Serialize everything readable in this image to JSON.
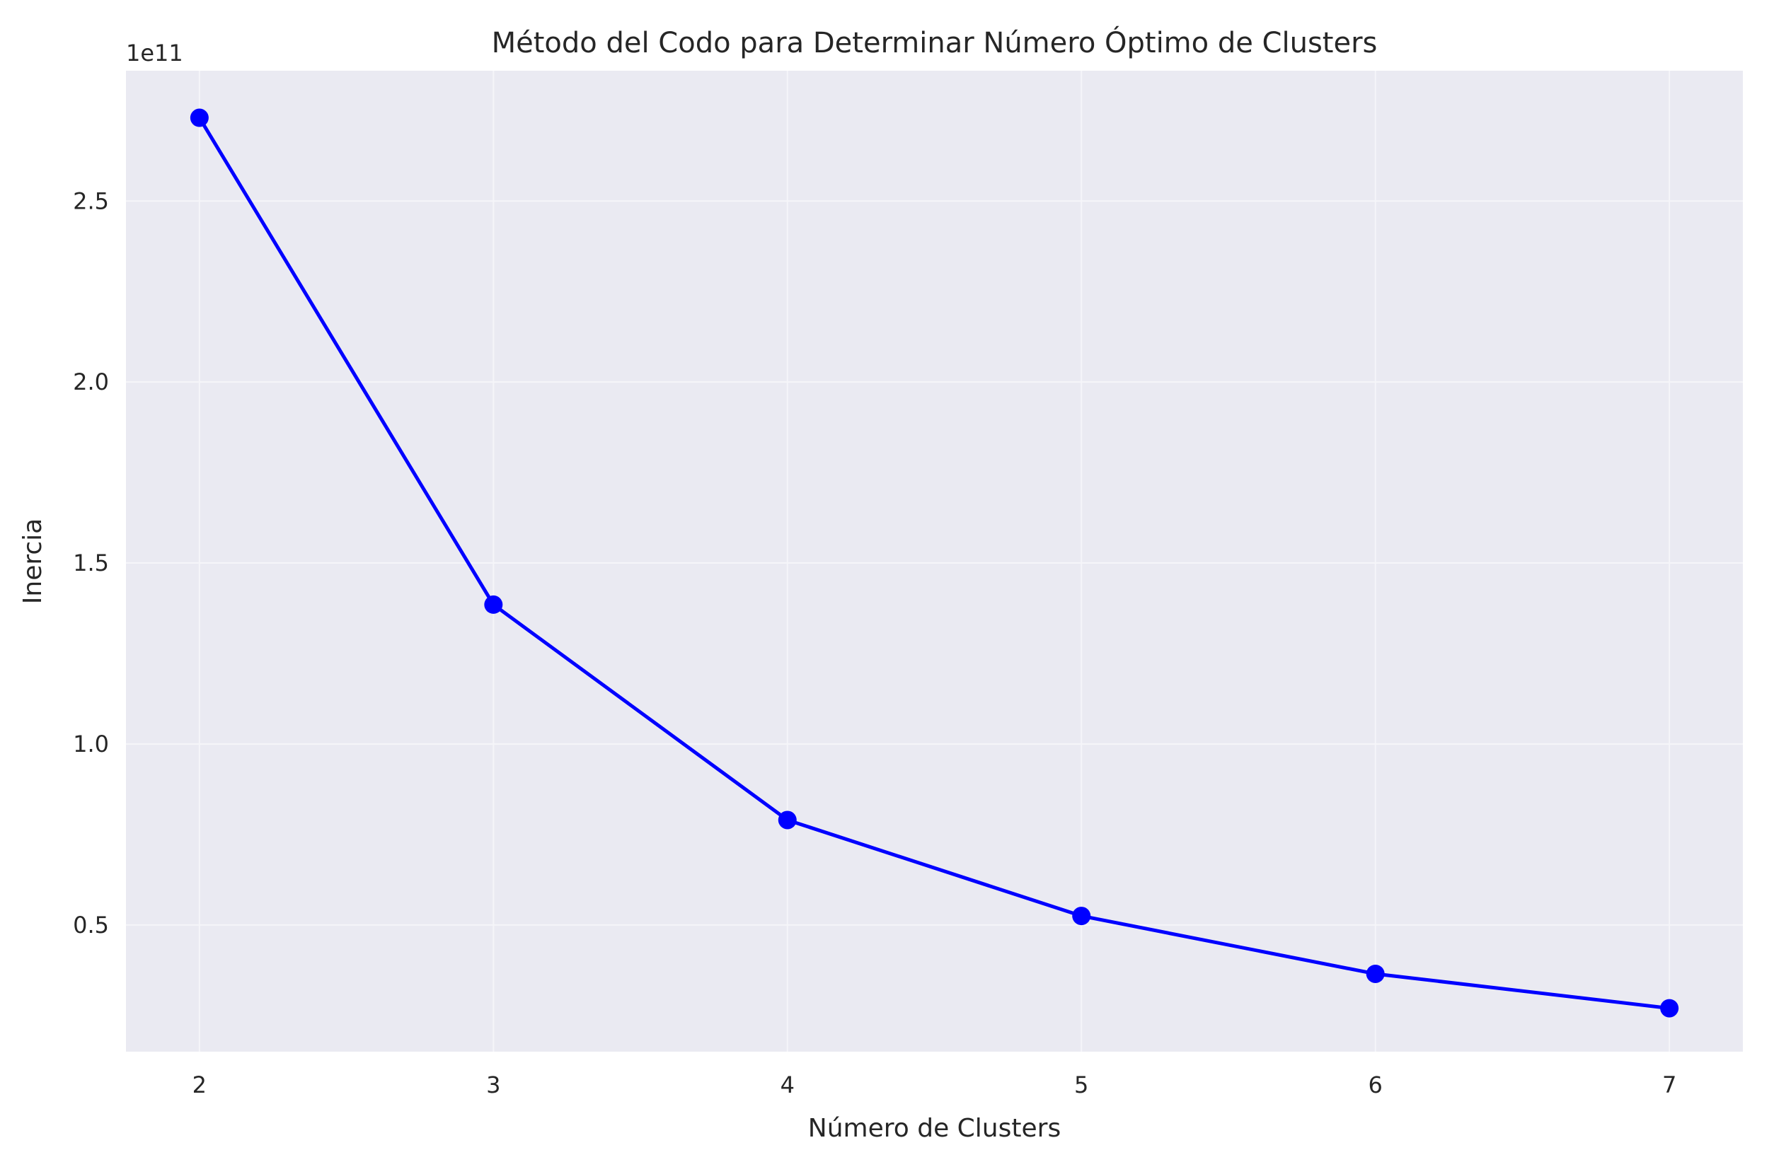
{
  "chart_data": {
    "type": "line",
    "title": "Método del Codo para Determinar Número Óptimo de Clusters",
    "xlabel": "Número de Clusters",
    "ylabel": "Inercia",
    "y_offset_label": "1e11",
    "x": [
      2,
      3,
      4,
      5,
      6,
      7
    ],
    "series": [
      {
        "values": [
          273000000000.0,
          138500000000.0,
          79000000000.0,
          52500000000.0,
          36500000000.0,
          27000000000.0
        ],
        "color": "#0000ff",
        "marker": "circle"
      }
    ],
    "xlim": [
      1.75,
      7.25
    ],
    "ylim": [
      15000000000.0,
      286000000000.0
    ],
    "x_ticks": [
      {
        "value": 2,
        "label": "2"
      },
      {
        "value": 3,
        "label": "3"
      },
      {
        "value": 4,
        "label": "4"
      },
      {
        "value": 5,
        "label": "5"
      },
      {
        "value": 6,
        "label": "6"
      },
      {
        "value": 7,
        "label": "7"
      }
    ],
    "y_ticks": [
      {
        "value": 50000000000.0,
        "label": "0.5"
      },
      {
        "value": 100000000000.0,
        "label": "1.0"
      },
      {
        "value": 150000000000.0,
        "label": "1.5"
      },
      {
        "value": 200000000000.0,
        "label": "2.0"
      },
      {
        "value": 250000000000.0,
        "label": "2.5"
      }
    ],
    "grid": true,
    "plot_background": "#eaeaf2",
    "grid_color": "#f5f5f9"
  }
}
